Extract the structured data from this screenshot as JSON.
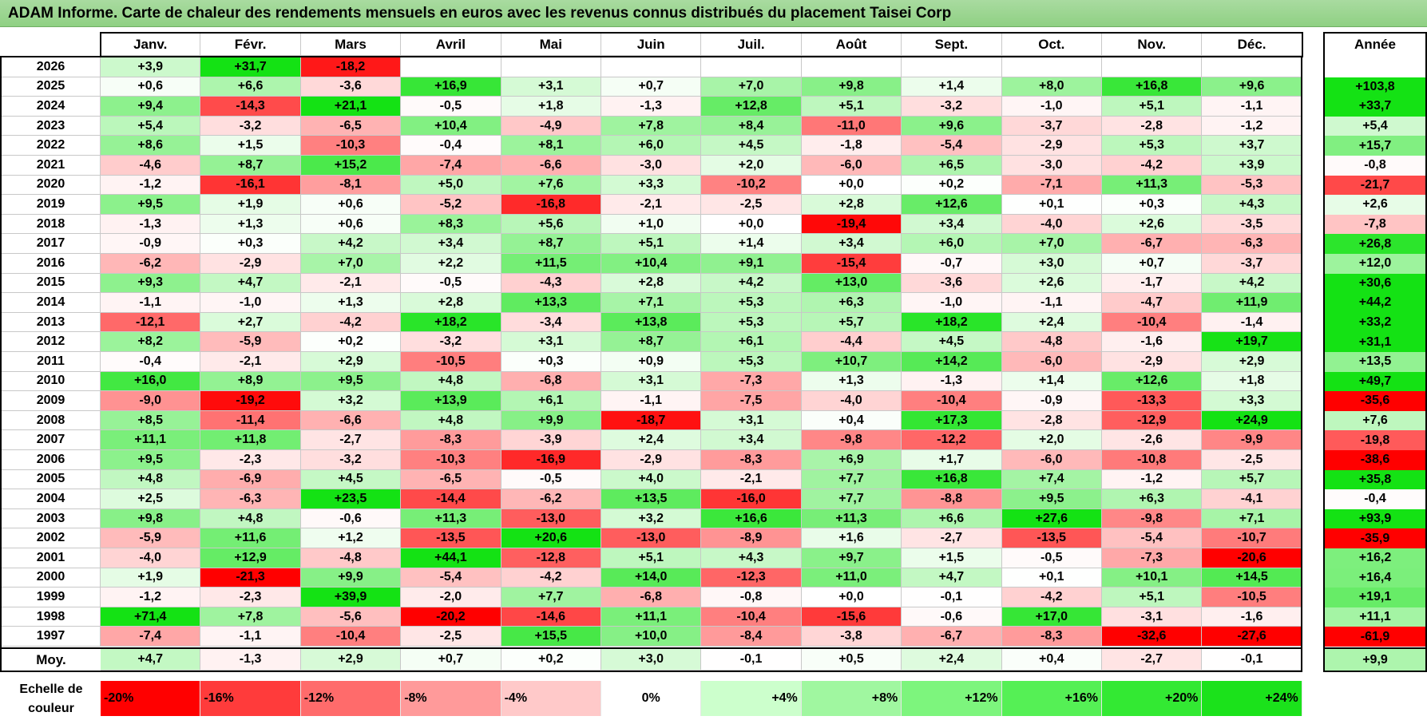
{
  "title": "ADAM Informe. Carte de chaleur des rendements mensuels en euros avec les revenus connus distribués du placement Taisei Corp",
  "chart_data": {
    "type": "heatmap",
    "title": "ADAM Informe. Carte de chaleur des rendements mensuels en euros avec les revenus connus distribués du placement Taisei Corp",
    "months": [
      "Janv.",
      "Févr.",
      "Mars",
      "Avril",
      "Mai",
      "Juin",
      "Juil.",
      "Août",
      "Sept.",
      "Oct.",
      "Nov.",
      "Déc."
    ],
    "year_header": "Année",
    "avg_label": "Moy.",
    "rows": [
      {
        "year": "2026",
        "values": [
          "+3,9",
          "+31,7",
          "-18,2",
          null,
          null,
          null,
          null,
          null,
          null,
          null,
          null,
          null
        ],
        "annual": null
      },
      {
        "year": "2025",
        "values": [
          "+0,6",
          "+6,6",
          "-3,6",
          "+16,9",
          "+3,1",
          "+0,7",
          "+7,0",
          "+9,8",
          "+1,4",
          "+8,0",
          "+16,8",
          "+9,6"
        ],
        "annual": "+103,8"
      },
      {
        "year": "2024",
        "values": [
          "+9,4",
          "-14,3",
          "+21,1",
          "-0,5",
          "+1,8",
          "-1,3",
          "+12,8",
          "+5,1",
          "-3,2",
          "-1,0",
          "+5,1",
          "-1,1"
        ],
        "annual": "+33,7"
      },
      {
        "year": "2023",
        "values": [
          "+5,4",
          "-3,2",
          "-6,5",
          "+10,4",
          "-4,9",
          "+7,8",
          "+8,4",
          "-11,0",
          "+9,6",
          "-3,7",
          "-2,8",
          "-1,2"
        ],
        "annual": "+5,4"
      },
      {
        "year": "2022",
        "values": [
          "+8,6",
          "+1,5",
          "-10,3",
          "-0,4",
          "+8,1",
          "+6,0",
          "+4,5",
          "-1,8",
          "-5,4",
          "-2,9",
          "+5,3",
          "+3,7"
        ],
        "annual": "+15,7"
      },
      {
        "year": "2021",
        "values": [
          "-4,6",
          "+8,7",
          "+15,2",
          "-7,4",
          "-6,6",
          "-3,0",
          "+2,0",
          "-6,0",
          "+6,5",
          "-3,0",
          "-4,2",
          "+3,9"
        ],
        "annual": "-0,8"
      },
      {
        "year": "2020",
        "values": [
          "-1,2",
          "-16,1",
          "-8,1",
          "+5,0",
          "+7,6",
          "+3,3",
          "-10,2",
          "+0,0",
          "+0,2",
          "-7,1",
          "+11,3",
          "-5,3"
        ],
        "annual": "-21,7"
      },
      {
        "year": "2019",
        "values": [
          "+9,5",
          "+1,9",
          "+0,6",
          "-5,2",
          "-16,8",
          "-2,1",
          "-2,5",
          "+2,8",
          "+12,6",
          "+0,1",
          "+0,3",
          "+4,3"
        ],
        "annual": "+2,6"
      },
      {
        "year": "2018",
        "values": [
          "-1,3",
          "+1,3",
          "+0,6",
          "+8,3",
          "+5,6",
          "+1,0",
          "+0,0",
          "-19,4",
          "+3,4",
          "-4,0",
          "+2,6",
          "-3,5"
        ],
        "annual": "-7,8"
      },
      {
        "year": "2017",
        "values": [
          "-0,9",
          "+0,3",
          "+4,2",
          "+3,4",
          "+8,7",
          "+5,1",
          "+1,4",
          "+3,4",
          "+6,0",
          "+7,0",
          "-6,7",
          "-6,3"
        ],
        "annual": "+26,8"
      },
      {
        "year": "2016",
        "values": [
          "-6,2",
          "-2,9",
          "+7,0",
          "+2,2",
          "+11,5",
          "+10,4",
          "+9,1",
          "-15,4",
          "-0,7",
          "+3,0",
          "+0,7",
          "-3,7"
        ],
        "annual": "+12,0"
      },
      {
        "year": "2015",
        "values": [
          "+9,3",
          "+4,7",
          "-2,1",
          "-0,5",
          "-4,3",
          "+2,8",
          "+4,2",
          "+13,0",
          "-3,6",
          "+2,6",
          "-1,7",
          "+4,2"
        ],
        "annual": "+30,6"
      },
      {
        "year": "2014",
        "values": [
          "-1,1",
          "-1,0",
          "+1,3",
          "+2,8",
          "+13,3",
          "+7,1",
          "+5,3",
          "+6,3",
          "-1,0",
          "-1,1",
          "-4,7",
          "+11,9"
        ],
        "annual": "+44,2"
      },
      {
        "year": "2013",
        "values": [
          "-12,1",
          "+2,7",
          "-4,2",
          "+18,2",
          "-3,4",
          "+13,8",
          "+5,3",
          "+5,7",
          "+18,2",
          "+2,4",
          "-10,4",
          "-1,4"
        ],
        "annual": "+33,2"
      },
      {
        "year": "2012",
        "values": [
          "+8,2",
          "-5,9",
          "+0,2",
          "-3,2",
          "+3,1",
          "+8,7",
          "+6,1",
          "-4,4",
          "+4,5",
          "-4,8",
          "-1,6",
          "+19,7"
        ],
        "annual": "+31,1"
      },
      {
        "year": "2011",
        "values": [
          "-0,4",
          "-2,1",
          "+2,9",
          "-10,5",
          "+0,3",
          "+0,9",
          "+5,3",
          "+10,7",
          "+14,2",
          "-6,0",
          "-2,9",
          "+2,9"
        ],
        "annual": "+13,5"
      },
      {
        "year": "2010",
        "values": [
          "+16,0",
          "+8,9",
          "+9,5",
          "+4,8",
          "-6,8",
          "+3,1",
          "-7,3",
          "+1,3",
          "-1,3",
          "+1,4",
          "+12,6",
          "+1,8"
        ],
        "annual": "+49,7"
      },
      {
        "year": "2009",
        "values": [
          "-9,0",
          "-19,2",
          "+3,2",
          "+13,9",
          "+6,1",
          "-1,1",
          "-7,5",
          "-4,0",
          "-10,4",
          "-0,9",
          "-13,3",
          "+3,3"
        ],
        "annual": "-35,6"
      },
      {
        "year": "2008",
        "values": [
          "+8,5",
          "-11,4",
          "-6,6",
          "+4,8",
          "+9,9",
          "-18,7",
          "+3,1",
          "+0,4",
          "+17,3",
          "-2,8",
          "-12,9",
          "+24,9"
        ],
        "annual": "+7,6"
      },
      {
        "year": "2007",
        "values": [
          "+11,1",
          "+11,8",
          "-2,7",
          "-8,3",
          "-3,9",
          "+2,4",
          "+3,4",
          "-9,8",
          "-12,2",
          "+2,0",
          "-2,6",
          "-9,9"
        ],
        "annual": "-19,8"
      },
      {
        "year": "2006",
        "values": [
          "+9,5",
          "-2,3",
          "-3,2",
          "-10,3",
          "-16,9",
          "-2,9",
          "-8,3",
          "+6,9",
          "+1,7",
          "-6,0",
          "-10,8",
          "-2,5"
        ],
        "annual": "-38,6"
      },
      {
        "year": "2005",
        "values": [
          "+4,8",
          "-6,9",
          "+4,5",
          "-6,5",
          "-0,5",
          "+4,0",
          "-2,1",
          "+7,7",
          "+16,8",
          "+7,4",
          "-1,2",
          "+5,7"
        ],
        "annual": "+35,8"
      },
      {
        "year": "2004",
        "values": [
          "+2,5",
          "-6,3",
          "+23,5",
          "-14,4",
          "-6,2",
          "+13,5",
          "-16,0",
          "+7,7",
          "-8,8",
          "+9,5",
          "+6,3",
          "-4,1"
        ],
        "annual": "-0,4"
      },
      {
        "year": "2003",
        "values": [
          "+9,8",
          "+4,8",
          "-0,6",
          "+11,3",
          "-13,0",
          "+3,2",
          "+16,6",
          "+11,3",
          "+6,6",
          "+27,6",
          "-9,8",
          "+7,1"
        ],
        "annual": "+93,9"
      },
      {
        "year": "2002",
        "values": [
          "-5,9",
          "+11,6",
          "+1,2",
          "-13,5",
          "+20,6",
          "-13,0",
          "-8,9",
          "+1,6",
          "-2,7",
          "-13,5",
          "-5,4",
          "-10,7"
        ],
        "annual": "-35,9"
      },
      {
        "year": "2001",
        "values": [
          "-4,0",
          "+12,9",
          "-4,8",
          "+44,1",
          "-12,8",
          "+5,1",
          "+4,3",
          "+9,7",
          "+1,5",
          "-0,5",
          "-7,3",
          "-20,6"
        ],
        "annual": "+16,2"
      },
      {
        "year": "2000",
        "values": [
          "+1,9",
          "-21,3",
          "+9,9",
          "-5,4",
          "-4,2",
          "+14,0",
          "-12,3",
          "+11,0",
          "+4,7",
          "+0,1",
          "+10,1",
          "+14,5"
        ],
        "annual": "+16,4"
      },
      {
        "year": "1999",
        "values": [
          "-1,2",
          "-2,3",
          "+39,9",
          "-2,0",
          "+7,7",
          "-6,8",
          "-0,8",
          "+0,0",
          "-0,1",
          "-4,2",
          "+5,1",
          "-10,5"
        ],
        "annual": "+19,1"
      },
      {
        "year": "1998",
        "values": [
          "+71,4",
          "+7,8",
          "-5,6",
          "-20,2",
          "-14,6",
          "+11,1",
          "-10,4",
          "-15,6",
          "-0,6",
          "+17,0",
          "-3,1",
          "-1,6"
        ],
        "annual": "+11,1"
      },
      {
        "year": "1997",
        "values": [
          "-7,4",
          "-1,1",
          "-10,4",
          "-2,5",
          "+15,5",
          "+10,0",
          "-8,4",
          "-3,8",
          "-6,7",
          "-8,3",
          "-32,6",
          "-27,6"
        ],
        "annual": "-61,9"
      }
    ],
    "averages": [
      "+4,7",
      "-1,3",
      "+2,9",
      "+0,7",
      "+0,2",
      "+3,0",
      "-0,1",
      "+0,5",
      "+2,4",
      "+0,4",
      "-2,7",
      "-0,1"
    ],
    "avg_annual": "+9,9",
    "legend": {
      "label_line1": "Echelle de",
      "label_line2": "couleur",
      "stops": [
        {
          "label": "-20%",
          "color": "#ff0000"
        },
        {
          "label": "-16%",
          "color": "#ff3b3b"
        },
        {
          "label": "-12%",
          "color": "#ff6b6b"
        },
        {
          "label": "-8%",
          "color": "#ff9a9a"
        },
        {
          "label": "-4%",
          "color": "#ffc9c9"
        },
        {
          "label": "0%",
          "color": "#ffffff"
        },
        {
          "label": "+4%",
          "color": "#ccffcc"
        },
        {
          "label": "+8%",
          "color": "#a0f7a0"
        },
        {
          "label": "+12%",
          "color": "#7df57d"
        },
        {
          "label": "+16%",
          "color": "#55f055"
        },
        {
          "label": "+20%",
          "color": "#33e933"
        },
        {
          "label": "+24%",
          "color": "#1be21b"
        }
      ]
    }
  }
}
